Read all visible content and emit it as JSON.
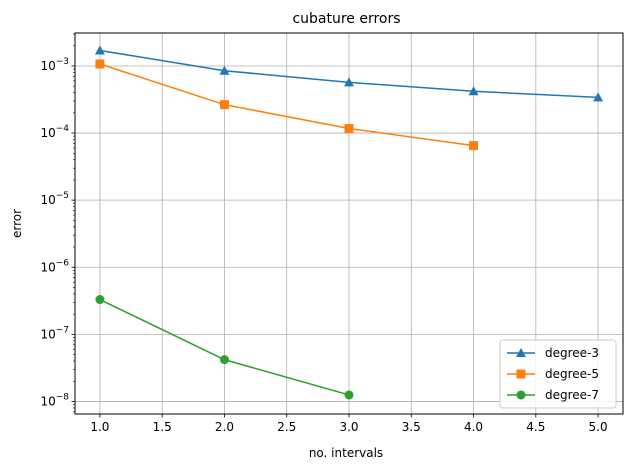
{
  "chart_data": {
    "type": "line",
    "title": "cubature errors",
    "xlabel": "no. intervals",
    "ylabel": "error",
    "xlim": [
      0.8,
      5.2
    ],
    "ylim": [
      6.5e-09,
      0.0031
    ],
    "yscale": "log",
    "grid": true,
    "legend_position": "lower right",
    "x_ticks": [
      1.0,
      1.5,
      2.0,
      2.5,
      3.0,
      3.5,
      4.0,
      4.5,
      5.0
    ],
    "x_tick_labels": [
      "1.0",
      "1.5",
      "2.0",
      "2.5",
      "3.0",
      "3.5",
      "4.0",
      "4.5",
      "5.0"
    ],
    "y_ticks": [
      1e-08,
      1e-07,
      1e-06,
      1e-05,
      0.0001,
      0.001
    ],
    "y_tick_labels": [
      {
        "base": "10",
        "exp": "−8"
      },
      {
        "base": "10",
        "exp": "−7"
      },
      {
        "base": "10",
        "exp": "−6"
      },
      {
        "base": "10",
        "exp": "−5"
      },
      {
        "base": "10",
        "exp": "−4"
      },
      {
        "base": "10",
        "exp": "−3"
      }
    ],
    "series": [
      {
        "name": "degree-3",
        "color": "#1f77b4",
        "marker": "triangle",
        "x": [
          1,
          2,
          3,
          4,
          5
        ],
        "y": [
          0.0017,
          0.00085,
          0.00057,
          0.00042,
          0.00034
        ]
      },
      {
        "name": "degree-5",
        "color": "#ff7f0e",
        "marker": "square",
        "x": [
          1,
          2,
          3,
          4
        ],
        "y": [
          0.00107,
          0.000265,
          0.000117,
          6.5e-05
        ]
      },
      {
        "name": "degree-7",
        "color": "#2ca02c",
        "marker": "circle",
        "x": [
          1,
          2,
          3
        ],
        "y": [
          3.3e-07,
          4.2e-08,
          1.25e-08
        ]
      }
    ]
  }
}
